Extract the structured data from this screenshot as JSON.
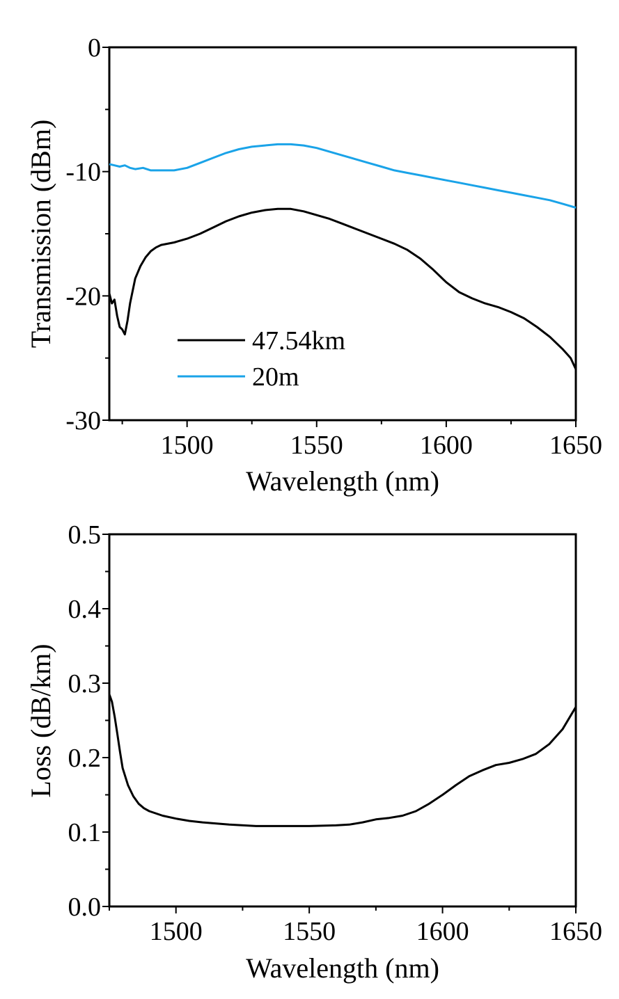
{
  "chart_data": [
    {
      "type": "line",
      "title": "",
      "xlabel": "Wavelength (nm)",
      "ylabel": "Transmission (dBm)",
      "xlim": [
        1470,
        1650
      ],
      "ylim": [
        -30,
        0
      ],
      "xticks": [
        1500,
        1550,
        1600,
        1650
      ],
      "yticks": [
        0,
        -10,
        -20,
        -30
      ],
      "xtick_labels": [
        "1500",
        "1550",
        "1600",
        "1650"
      ],
      "ytick_labels": [
        "0",
        "-10",
        "-20",
        "-30"
      ],
      "grid": false,
      "legend": "lower-left",
      "series": [
        {
          "name": "47.54km",
          "color": "#000000",
          "x": [
            1470,
            1471,
            1472,
            1473,
            1474,
            1475,
            1476,
            1477,
            1478,
            1479,
            1480,
            1482,
            1484,
            1486,
            1488,
            1490,
            1495,
            1500,
            1505,
            1510,
            1515,
            1520,
            1525,
            1530,
            1535,
            1540,
            1545,
            1550,
            1555,
            1560,
            1565,
            1570,
            1575,
            1580,
            1585,
            1590,
            1595,
            1600,
            1605,
            1610,
            1615,
            1620,
            1625,
            1630,
            1635,
            1640,
            1645,
            1648,
            1650
          ],
          "y": [
            -19.8,
            -20.6,
            -20.3,
            -21.6,
            -22.5,
            -22.7,
            -23.1,
            -22.0,
            -20.6,
            -19.6,
            -18.6,
            -17.6,
            -16.9,
            -16.4,
            -16.1,
            -15.9,
            -15.7,
            -15.4,
            -15.0,
            -14.5,
            -14.0,
            -13.6,
            -13.3,
            -13.1,
            -13.0,
            -13.0,
            -13.2,
            -13.5,
            -13.8,
            -14.2,
            -14.6,
            -15.0,
            -15.4,
            -15.8,
            -16.3,
            -17.0,
            -17.9,
            -18.9,
            -19.7,
            -20.2,
            -20.6,
            -20.9,
            -21.3,
            -21.8,
            -22.5,
            -23.3,
            -24.3,
            -25.0,
            -25.9
          ]
        },
        {
          "name": "20m",
          "color": "#1aa3e8",
          "x": [
            1470,
            1472,
            1474,
            1476,
            1478,
            1480,
            1483,
            1486,
            1490,
            1495,
            1500,
            1505,
            1510,
            1515,
            1520,
            1525,
            1530,
            1535,
            1540,
            1545,
            1550,
            1555,
            1560,
            1565,
            1570,
            1575,
            1580,
            1585,
            1590,
            1595,
            1600,
            1605,
            1610,
            1615,
            1620,
            1625,
            1630,
            1635,
            1640,
            1645,
            1650
          ],
          "y": [
            -9.4,
            -9.5,
            -9.6,
            -9.5,
            -9.7,
            -9.8,
            -9.7,
            -9.9,
            -9.9,
            -9.9,
            -9.7,
            -9.3,
            -8.9,
            -8.5,
            -8.2,
            -8.0,
            -7.9,
            -7.8,
            -7.8,
            -7.9,
            -8.1,
            -8.4,
            -8.7,
            -9.0,
            -9.3,
            -9.6,
            -9.9,
            -10.1,
            -10.3,
            -10.5,
            -10.7,
            -10.9,
            -11.1,
            -11.3,
            -11.5,
            -11.7,
            -11.9,
            -12.1,
            -12.3,
            -12.6,
            -12.9
          ]
        }
      ]
    },
    {
      "type": "line",
      "title": "",
      "xlabel": "Wavelength (nm)",
      "ylabel": "Loss (dB/km)",
      "xlim": [
        1475,
        1650
      ],
      "ylim": [
        0.0,
        0.5
      ],
      "xticks": [
        1500,
        1550,
        1600,
        1650
      ],
      "yticks": [
        0.0,
        0.1,
        0.2,
        0.3,
        0.4,
        0.5
      ],
      "xtick_labels": [
        "1500",
        "1550",
        "1600",
        "1650"
      ],
      "ytick_labels": [
        "0.0",
        "0.1",
        "0.2",
        "0.3",
        "0.4",
        "0.5"
      ],
      "grid": false,
      "legend": "none",
      "series": [
        {
          "color": "#000000",
          "x": [
            1475,
            1476,
            1477,
            1478,
            1479,
            1480,
            1482,
            1484,
            1486,
            1488,
            1490,
            1495,
            1500,
            1505,
            1510,
            1520,
            1530,
            1540,
            1550,
            1560,
            1565,
            1570,
            1575,
            1580,
            1585,
            1590,
            1595,
            1600,
            1605,
            1610,
            1615,
            1620,
            1625,
            1630,
            1635,
            1640,
            1645,
            1650
          ],
          "y": [
            0.285,
            0.275,
            0.255,
            0.232,
            0.208,
            0.186,
            0.163,
            0.148,
            0.138,
            0.132,
            0.128,
            0.122,
            0.118,
            0.115,
            0.113,
            0.11,
            0.108,
            0.108,
            0.108,
            0.109,
            0.11,
            0.113,
            0.117,
            0.119,
            0.122,
            0.128,
            0.138,
            0.15,
            0.163,
            0.175,
            0.183,
            0.19,
            0.193,
            0.198,
            0.205,
            0.218,
            0.238,
            0.268
          ]
        }
      ]
    }
  ]
}
